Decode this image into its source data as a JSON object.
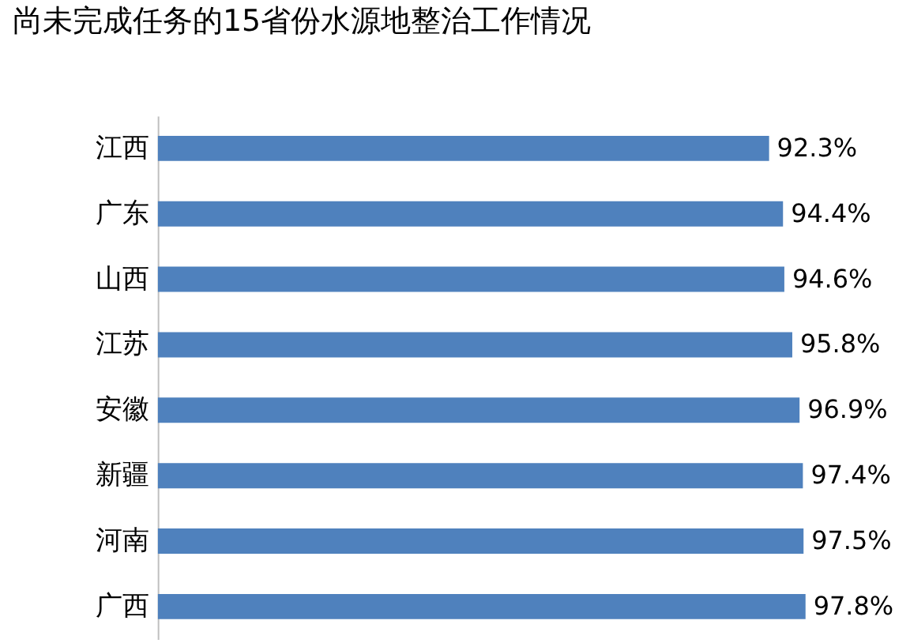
{
  "chart_data": {
    "type": "bar",
    "orientation": "horizontal",
    "title": "尚未完成任务的15省份水源地整治工作情况",
    "categories": [
      "江西",
      "广东",
      "山西",
      "江苏",
      "安徽",
      "新疆",
      "河南",
      "广西"
    ],
    "values": [
      92.3,
      94.4,
      94.6,
      95.8,
      96.9,
      97.4,
      97.5,
      97.8
    ],
    "value_labels": [
      "92.3%",
      "94.4%",
      "94.6%",
      "95.8%",
      "96.9%",
      "97.4%",
      "97.5%",
      "97.8%"
    ],
    "color": "#4f81bd",
    "tick_labels": "y",
    "grid": false
  }
}
